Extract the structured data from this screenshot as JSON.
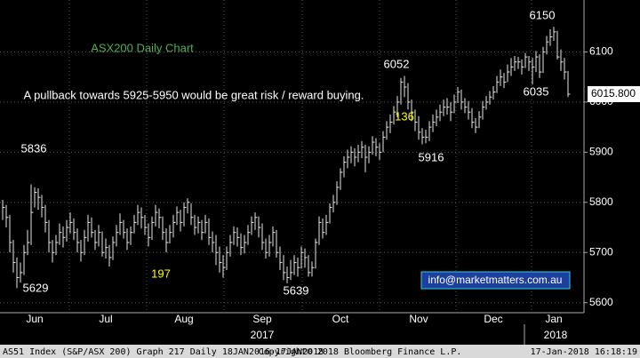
{
  "chart_data": {
    "type": "ohlc",
    "categories": [
      null,
      null,
      null,
      null,
      null,
      null,
      null,
      null,
      null,
      "Jun",
      null,
      null,
      null,
      null,
      null,
      null,
      null,
      null,
      null,
      null,
      null,
      null,
      null,
      null,
      null,
      null,
      null,
      null,
      null,
      "Jul",
      null,
      null,
      null,
      null,
      null,
      null,
      null,
      null,
      null,
      null,
      null,
      null,
      null,
      null,
      null,
      null,
      null,
      null,
      null,
      null,
      null,
      "Aug",
      null,
      null,
      null,
      null,
      null,
      null,
      null,
      null,
      null,
      null,
      null,
      null,
      null,
      null,
      null,
      null,
      null,
      null,
      null,
      null,
      null,
      "Sep",
      null,
      null,
      null,
      null,
      null,
      null,
      null,
      null,
      null,
      null,
      null,
      null,
      null,
      null,
      null,
      null,
      null,
      null,
      null,
      null,
      null,
      "Oct",
      null,
      null,
      null,
      null,
      null,
      null,
      null,
      null,
      null,
      null,
      null,
      null,
      null,
      null,
      null,
      null,
      null,
      null,
      null,
      null,
      null,
      "Nov",
      null,
      null,
      null,
      null,
      null,
      null,
      null,
      null,
      null,
      null,
      null,
      null,
      null,
      null,
      null,
      null,
      null,
      null,
      null,
      null,
      "Dec",
      null,
      null,
      null,
      null,
      null,
      null,
      null,
      null,
      null,
      null,
      null,
      null,
      null,
      null,
      null,
      null,
      "Jan",
      null,
      null,
      null,
      null
    ],
    "x_group_labels": [
      "2017",
      "2018"
    ],
    "high": [
      5805,
      5795,
      5775,
      5725,
      5690,
      5680,
      5715,
      5745,
      5836,
      5830,
      5828,
      5815,
      5795,
      5765,
      5725,
      5735,
      5758,
      5752,
      5765,
      5780,
      5768,
      5748,
      5725,
      5745,
      5775,
      5770,
      5745,
      5755,
      5742,
      5728,
      5715,
      5732,
      5755,
      5778,
      5765,
      5748,
      5752,
      5775,
      5795,
      5790,
      5775,
      5758,
      5772,
      5795,
      5788,
      5772,
      5748,
      5755,
      5775,
      5792,
      5785,
      5800,
      5808,
      5798,
      5775,
      5772,
      5765,
      5775,
      5768,
      5742,
      5735,
      5712,
      5695,
      5712,
      5735,
      5752,
      5750,
      5738,
      5735,
      5755,
      5772,
      5780,
      5772,
      5758,
      5728,
      5735,
      5752,
      5745,
      5712,
      5695,
      5672,
      5685,
      5695,
      5690,
      5712,
      5708,
      5695,
      5682,
      5728,
      5772,
      5768,
      5775,
      5798,
      5815,
      5842,
      5868,
      5892,
      5905,
      5912,
      5908,
      5915,
      5922,
      5915,
      5912,
      5932,
      5928,
      5918,
      5942,
      5962,
      5975,
      5992,
      6012,
      6048,
      6052,
      6038,
      6005,
      5985,
      5972,
      5948,
      5945,
      5962,
      5975,
      5985,
      5995,
      6005,
      6008,
      6000,
      6015,
      6030,
      6025,
      6008,
      6002,
      5988,
      5968,
      5982,
      6002,
      6012,
      6022,
      6032,
      6052,
      6065,
      6058,
      6075,
      6088,
      6092,
      6090,
      6085,
      6098,
      6092,
      6088,
      6102,
      6095,
      6110,
      6132,
      6145,
      6150,
      6142,
      6105,
      6088,
      6062
    ],
    "low": [
      5765,
      5750,
      5700,
      5660,
      5629,
      5640,
      5655,
      5695,
      5715,
      5790,
      5785,
      5770,
      5740,
      5700,
      5680,
      5695,
      5715,
      5710,
      5722,
      5738,
      5725,
      5700,
      5682,
      5695,
      5722,
      5730,
      5705,
      5712,
      5692,
      5688,
      5672,
      5685,
      5712,
      5735,
      5728,
      5705,
      5715,
      5738,
      5755,
      5748,
      5735,
      5712,
      5725,
      5752,
      5748,
      5725,
      5700,
      5718,
      5730,
      5755,
      5742,
      5752,
      5778,
      5755,
      5735,
      5738,
      5725,
      5738,
      5715,
      5700,
      5675,
      5660,
      5650,
      5665,
      5692,
      5715,
      5712,
      5695,
      5698,
      5715,
      5735,
      5745,
      5730,
      5705,
      5688,
      5692,
      5712,
      5690,
      5665,
      5645,
      5639,
      5645,
      5655,
      5652,
      5668,
      5670,
      5652,
      5652,
      5668,
      5715,
      5728,
      5735,
      5758,
      5780,
      5795,
      5825,
      5850,
      5868,
      5878,
      5872,
      5880,
      5888,
      5860,
      5878,
      5895,
      5892,
      5885,
      5900,
      5925,
      5938,
      5955,
      5970,
      5995,
      6010,
      5985,
      5962,
      5942,
      5925,
      5916,
      5918,
      5922,
      5940,
      5952,
      5962,
      5972,
      5975,
      5962,
      5978,
      5998,
      5985,
      5978,
      5965,
      5948,
      5938,
      5948,
      5965,
      5985,
      5995,
      6005,
      6018,
      6032,
      6028,
      6040,
      6052,
      6062,
      6066,
      6055,
      6068,
      6062,
      6035,
      6060,
      6048,
      6058,
      6095,
      6112,
      6122,
      6085,
      6062,
      6045,
      6010
    ],
    "close": [
      5790,
      5770,
      5720,
      5680,
      5650,
      5660,
      5700,
      5720,
      5780,
      5820,
      5810,
      5790,
      5760,
      5720,
      5700,
      5720,
      5740,
      5730,
      5750,
      5760,
      5740,
      5720,
      5700,
      5730,
      5760,
      5740,
      5720,
      5740,
      5700,
      5710,
      5690,
      5720,
      5740,
      5760,
      5740,
      5720,
      5740,
      5760,
      5780,
      5770,
      5750,
      5730,
      5760,
      5780,
      5770,
      5740,
      5720,
      5740,
      5760,
      5780,
      5760,
      5790,
      5800,
      5770,
      5750,
      5760,
      5740,
      5760,
      5730,
      5720,
      5700,
      5680,
      5670,
      5700,
      5720,
      5740,
      5730,
      5710,
      5720,
      5740,
      5760,
      5770,
      5750,
      5720,
      5700,
      5720,
      5740,
      5700,
      5680,
      5660,
      5650,
      5660,
      5680,
      5670,
      5700,
      5690,
      5660,
      5670,
      5720,
      5760,
      5740,
      5760,
      5790,
      5800,
      5830,
      5860,
      5880,
      5890,
      5900,
      5890,
      5900,
      5910,
      5890,
      5900,
      5920,
      5910,
      5900,
      5930,
      5950,
      5960,
      5980,
      6000,
      6040,
      6030,
      6000,
      5980,
      5960,
      5940,
      5930,
      5930,
      5950,
      5960,
      5970,
      5980,
      5990,
      5990,
      5980,
      6000,
      6020,
      6000,
      5990,
      5980,
      5960,
      5950,
      5970,
      5990,
      6000,
      6010,
      6020,
      6040,
      6050,
      6040,
      6060,
      6070,
      6080,
      6080,
      6070,
      6090,
      6080,
      6070,
      6090,
      6060,
      6100,
      6120,
      6130,
      6140,
      6090,
      6080,
      6060,
      6015.8
    ],
    "color": "#e8e8e8",
    "ylim": [
      5580,
      6200
    ],
    "yticks": [
      5600,
      5700,
      5800,
      5900,
      6000,
      6100
    ],
    "grid": true,
    "last_price": {
      "value": 6015.8,
      "label": "6015.800"
    },
    "annotations": [
      "ASX200 Daily Chart",
      "A pullback towards 5925-5950 would be great risk / reward buying.",
      "136",
      "197",
      "5836",
      "5629",
      "5639",
      "6052",
      "5916",
      "6035",
      "6150"
    ],
    "contact": "info@marketmatters.com.au",
    "footer": [
      "AS51 Index (S&P/ASX 200) Graph 217  Daily 18JAN2016-17JAN2018",
      "Copyright© 2018 Bloomberg Finance L.P.",
      "17-Jan-2018 16:18:19"
    ]
  }
}
